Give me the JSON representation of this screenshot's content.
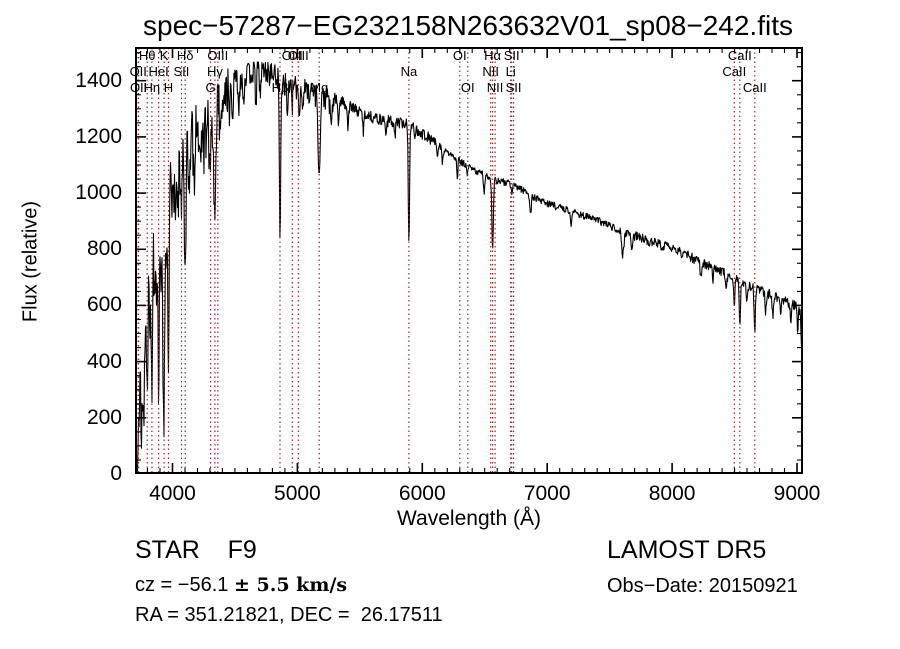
{
  "title": "spec−57287−EG232158N263632V01_sp08−242.fits",
  "footer": {
    "class_line": "STAR    F9",
    "cz_prefix": "cz = −56.1 ",
    "cz_math": "± 5.5 km/s",
    "radec_line": "RA = 351.21821, DEC =  26.17511",
    "survey": "LAMOST DR5",
    "obs_date": "Obs−Date: 20150921"
  },
  "colors": {
    "background": "#ffffff",
    "spectrum": "#000000",
    "axis": "#000000",
    "line_marker": "#962828"
  },
  "chart_data": {
    "type": "line",
    "title": "spec−57287−EG232158N263632V01_sp08−242.fits",
    "xlabel": "Wavelength (Å)",
    "ylabel": "Flux (relative)",
    "xlim": [
      3700,
      9048
    ],
    "ylim": [
      0,
      1520
    ],
    "xticks": [
      4000,
      5000,
      6000,
      7000,
      8000,
      9000
    ],
    "yticks": [
      0,
      200,
      400,
      600,
      800,
      1000,
      1200,
      1400
    ],
    "x_minor_step": 100,
    "y_minor_step": 50,
    "grid": false,
    "legend": "none",
    "spectral_lines": [
      {
        "label": "OII",
        "wavelength": 3726,
        "row": 2
      },
      {
        "label": "OII",
        "wavelength": 3729,
        "row": 3
      },
      {
        "label": "Hθ",
        "wavelength": 3798,
        "row": 1
      },
      {
        "label": "Hη",
        "wavelength": 3835,
        "row": 3
      },
      {
        "label": "HeI",
        "wavelength": 3889,
        "row": 2
      },
      {
        "label": "K",
        "wavelength": 3933,
        "row": 1
      },
      {
        "label": "H",
        "wavelength": 3968,
        "row": 3
      },
      {
        "label": "SII",
        "wavelength": 4072,
        "row": 2
      },
      {
        "label": "Hδ",
        "wavelength": 4102,
        "row": 1
      },
      {
        "label": "G",
        "wavelength": 4305,
        "row": 3
      },
      {
        "label": "Hγ",
        "wavelength": 4340,
        "row": 2
      },
      {
        "label": "OIII",
        "wavelength": 4363,
        "row": 1
      },
      {
        "label": "Hβ",
        "wavelength": 4861,
        "row": 3
      },
      {
        "label": "OIII",
        "wavelength": 4959,
        "row": 1
      },
      {
        "label": "OIII",
        "wavelength": 5007,
        "row": 1
      },
      {
        "label": "Mg",
        "wavelength": 5175,
        "row": 3
      },
      {
        "label": "Na",
        "wavelength": 5893,
        "row": 2
      },
      {
        "label": "OI",
        "wavelength": 6300,
        "row": 1
      },
      {
        "label": "OI",
        "wavelength": 6364,
        "row": 3
      },
      {
        "label": "NII",
        "wavelength": 6548,
        "row": 2
      },
      {
        "label": "Hα",
        "wavelength": 6563,
        "row": 1
      },
      {
        "label": "NII",
        "wavelength": 6583,
        "row": 3
      },
      {
        "label": "Li",
        "wavelength": 6708,
        "row": 2
      },
      {
        "label": "SII",
        "wavelength": 6716,
        "row": 1
      },
      {
        "label": "SII",
        "wavelength": 6731,
        "row": 3
      },
      {
        "label": "CaII",
        "wavelength": 8498,
        "row": 2
      },
      {
        "label": "CaII",
        "wavelength": 8542,
        "row": 1
      },
      {
        "label": "CaII",
        "wavelength": 8662,
        "row": 3
      }
    ],
    "continuum": [
      [
        3700,
        640
      ],
      [
        3740,
        760
      ],
      [
        3780,
        880
      ],
      [
        3830,
        960
      ],
      [
        3880,
        1010
      ],
      [
        3930,
        1060
      ],
      [
        3970,
        1090
      ],
      [
        4000,
        1170
      ],
      [
        4060,
        1210
      ],
      [
        4120,
        1240
      ],
      [
        4200,
        1290
      ],
      [
        4300,
        1340
      ],
      [
        4400,
        1390
      ],
      [
        4500,
        1410
      ],
      [
        4600,
        1430
      ],
      [
        4700,
        1445
      ],
      [
        4800,
        1430
      ],
      [
        4900,
        1400
      ],
      [
        5000,
        1380
      ],
      [
        5100,
        1370
      ],
      [
        5200,
        1350
      ],
      [
        5350,
        1330
      ],
      [
        5500,
        1290
      ],
      [
        5650,
        1265
      ],
      [
        5800,
        1255
      ],
      [
        5900,
        1245
      ],
      [
        6000,
        1215
      ],
      [
        6100,
        1185
      ],
      [
        6200,
        1145
      ],
      [
        6300,
        1115
      ],
      [
        6400,
        1085
      ],
      [
        6500,
        1065
      ],
      [
        6600,
        1045
      ],
      [
        6700,
        1035
      ],
      [
        6800,
        1015
      ],
      [
        6900,
        985
      ],
      [
        7000,
        965
      ],
      [
        7200,
        935
      ],
      [
        7400,
        905
      ],
      [
        7600,
        865
      ],
      [
        7800,
        835
      ],
      [
        8000,
        805
      ],
      [
        8200,
        765
      ],
      [
        8400,
        725
      ],
      [
        8600,
        675
      ],
      [
        8800,
        640
      ],
      [
        9000,
        600
      ],
      [
        9045,
        575
      ]
    ],
    "absorption_features": [
      [
        3705,
        350,
        6
      ],
      [
        3712,
        500,
        5
      ],
      [
        3722,
        450,
        5
      ],
      [
        3734,
        550,
        5
      ],
      [
        3750,
        600,
        6
      ],
      [
        3762,
        400,
        5
      ],
      [
        3771,
        500,
        5
      ],
      [
        3782,
        350,
        5
      ],
      [
        3798,
        620,
        6
      ],
      [
        3820,
        380,
        5
      ],
      [
        3835,
        650,
        6
      ],
      [
        3856,
        300,
        5
      ],
      [
        3871,
        300,
        5
      ],
      [
        3889,
        680,
        6
      ],
      [
        3910,
        350,
        5
      ],
      [
        3923,
        400,
        5
      ],
      [
        3933,
        750,
        6
      ],
      [
        3952,
        300,
        5
      ],
      [
        3968,
        700,
        6
      ],
      [
        3995,
        250,
        5
      ],
      [
        4010,
        200,
        5
      ],
      [
        4026,
        250,
        5
      ],
      [
        4045,
        230,
        5
      ],
      [
        4063,
        200,
        5
      ],
      [
        4072,
        180,
        5
      ],
      [
        4102,
        520,
        7
      ],
      [
        4132,
        180,
        5
      ],
      [
        4144,
        170,
        5
      ],
      [
        4172,
        220,
        6
      ],
      [
        4216,
        170,
        5
      ],
      [
        4227,
        200,
        5
      ],
      [
        4250,
        170,
        5
      ],
      [
        4272,
        160,
        5
      ],
      [
        4300,
        240,
        9
      ],
      [
        4325,
        180,
        5
      ],
      [
        4340,
        480,
        7
      ],
      [
        4383,
        200,
        5
      ],
      [
        4405,
        150,
        5
      ],
      [
        4455,
        130,
        5
      ],
      [
        4481,
        150,
        5
      ],
      [
        4531,
        120,
        5
      ],
      [
        4570,
        100,
        5
      ],
      [
        4668,
        110,
        5
      ],
      [
        4703,
        90,
        5
      ],
      [
        4861,
        600,
        5
      ],
      [
        4920,
        120,
        5
      ],
      [
        4957,
        90,
        4
      ],
      [
        5015,
        90,
        5
      ],
      [
        5041,
        80,
        4
      ],
      [
        5175,
        300,
        8
      ],
      [
        5270,
        110,
        7
      ],
      [
        5328,
        90,
        5
      ],
      [
        5405,
        80,
        5
      ],
      [
        5528,
        60,
        5
      ],
      [
        5711,
        50,
        5
      ],
      [
        5780,
        55,
        5
      ],
      [
        5893,
        430,
        5
      ],
      [
        5940,
        40,
        5
      ],
      [
        6122,
        55,
        5
      ],
      [
        6162,
        50,
        5
      ],
      [
        6280,
        80,
        4
      ],
      [
        6360,
        40,
        4
      ],
      [
        6495,
        60,
        5
      ],
      [
        6563,
        250,
        6
      ],
      [
        6717,
        45,
        4
      ],
      [
        6867,
        75,
        6
      ],
      [
        7190,
        45,
        6
      ],
      [
        7605,
        85,
        8
      ],
      [
        7680,
        50,
        6
      ],
      [
        8230,
        55,
        6
      ],
      [
        8327,
        45,
        5
      ],
      [
        8434,
        60,
        5
      ],
      [
        8498,
        110,
        5
      ],
      [
        8542,
        170,
        5
      ],
      [
        8598,
        60,
        4
      ],
      [
        8662,
        150,
        5
      ],
      [
        8750,
        70,
        5
      ],
      [
        8806,
        70,
        5
      ],
      [
        8870,
        60,
        5
      ],
      [
        8950,
        70,
        5
      ],
      [
        9005,
        80,
        5
      ],
      [
        9040,
        160,
        6
      ]
    ],
    "noise_model": {
      "seed": 13,
      "sample_step_angstrom": 4,
      "regions": [
        {
          "up_to": 4450,
          "amp": 58,
          "down_bias": 2.1
        },
        {
          "up_to": 5300,
          "amp": 33,
          "down_bias": 1.6
        },
        {
          "up_to": 6100,
          "amp": 17,
          "down_bias": 1.4
        },
        {
          "up_to": 7600,
          "amp": 11,
          "down_bias": 1.3
        },
        {
          "up_to": 9100,
          "amp": 14,
          "down_bias": 1.5
        }
      ]
    }
  }
}
